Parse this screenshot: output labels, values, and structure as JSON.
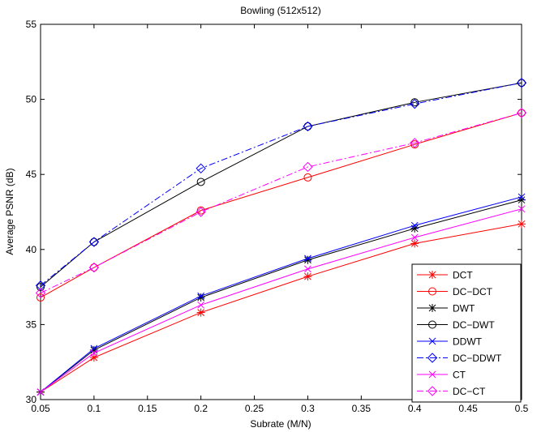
{
  "chart_data": {
    "type": "line",
    "title": "Bowling (512x512)",
    "xlabel": "Subrate (M/N)",
    "ylabel": "Average PSNR (dB)",
    "xlim": [
      0.05,
      0.5
    ],
    "ylim": [
      30,
      55
    ],
    "xticks": [
      "0.05",
      "0.1",
      "0.15",
      "0.2",
      "0.25",
      "0.3",
      "0.35",
      "0.4",
      "0.45",
      "0.5"
    ],
    "yticks": [
      "30",
      "35",
      "40",
      "45",
      "50",
      "55"
    ],
    "grid": false,
    "legend_position": "bottom-right",
    "x": [
      0.05,
      0.1,
      0.2,
      0.3,
      0.4,
      0.5
    ],
    "series": [
      {
        "name": "DCT",
        "color": "#ff0000",
        "dash": "solid",
        "marker": "asterisk",
        "values": [
          30.5,
          32.8,
          35.8,
          38.2,
          40.4,
          41.7
        ]
      },
      {
        "name": "DC−DCT",
        "color": "#ff0000",
        "dash": "solid",
        "marker": "circle",
        "values": [
          36.8,
          38.8,
          42.6,
          44.8,
          47.0,
          49.1
        ]
      },
      {
        "name": "DWT",
        "color": "#000000",
        "dash": "solid",
        "marker": "asterisk",
        "values": [
          30.5,
          33.3,
          36.8,
          39.3,
          41.4,
          43.3
        ]
      },
      {
        "name": "DC−DWT",
        "color": "#000000",
        "dash": "solid",
        "marker": "circle",
        "values": [
          37.5,
          40.5,
          44.5,
          48.2,
          49.8,
          51.1
        ]
      },
      {
        "name": "DDWT",
        "color": "#0000ff",
        "dash": "solid",
        "marker": "x",
        "values": [
          30.5,
          33.4,
          36.9,
          39.4,
          41.6,
          43.5
        ]
      },
      {
        "name": "DC−DDWT",
        "color": "#0000ff",
        "dash": "dashdot",
        "marker": "diamond",
        "values": [
          37.6,
          40.5,
          45.4,
          48.2,
          49.7,
          51.1
        ]
      },
      {
        "name": "CT",
        "color": "#ff00ff",
        "dash": "solid",
        "marker": "x",
        "values": [
          30.5,
          33.1,
          36.3,
          38.7,
          40.8,
          42.7
        ]
      },
      {
        "name": "DC−CT",
        "color": "#ff00ff",
        "dash": "dashdot",
        "marker": "diamond",
        "values": [
          37.1,
          38.8,
          42.5,
          45.5,
          47.1,
          49.1
        ]
      }
    ]
  }
}
